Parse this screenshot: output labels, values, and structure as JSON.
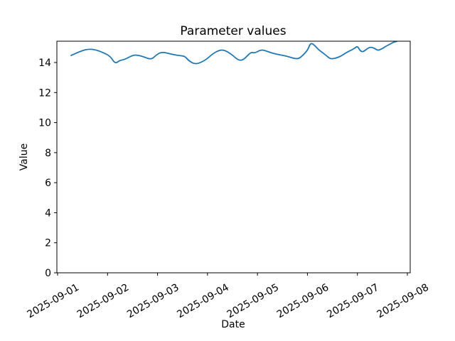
{
  "chart_data": {
    "type": "line",
    "title": "Parameter values",
    "xlabel": "Date",
    "ylabel": "Value",
    "x_tick_labels": [
      "2025-09-01",
      "2025-09-02",
      "2025-09-03",
      "2025-09-04",
      "2025-09-05",
      "2025-09-06",
      "2025-09-07",
      "2025-09-08"
    ],
    "y_ticks": [
      0,
      2,
      4,
      6,
      8,
      10,
      12,
      14
    ],
    "ylim": [
      0,
      15.42
    ],
    "xlim_days": [
      -0.014,
      7.057
    ],
    "grid": false,
    "legend": "none",
    "line_color": "#1f77b4",
    "x_tick_rotation_deg": 30,
    "series": [
      {
        "name": "Parameter values",
        "x_days_since_2025-09-01": [
          0.27,
          0.484,
          0.626,
          0.768,
          0.911,
          1.053,
          1.152,
          1.238,
          1.337,
          1.522,
          1.636,
          1.721,
          1.878,
          1.977,
          2.091,
          2.262,
          2.404,
          2.547,
          2.618,
          2.731,
          2.831,
          2.973,
          3.116,
          3.258,
          3.357,
          3.471,
          3.571,
          3.642,
          3.727,
          3.87,
          3.941,
          4.069,
          4.154,
          4.296,
          4.439,
          4.581,
          4.723,
          4.823,
          4.922,
          5.008,
          5.065,
          5.15,
          5.221,
          5.321,
          5.406,
          5.463,
          5.562,
          5.676,
          5.776,
          5.89,
          5.961,
          6.003,
          6.06,
          6.117,
          6.188,
          6.259,
          6.345,
          6.402,
          6.487,
          6.572,
          6.658,
          6.729,
          6.786
        ],
        "values": [
          14.47,
          14.8,
          14.9,
          14.85,
          14.66,
          14.43,
          13.91,
          14.14,
          14.19,
          14.52,
          14.47,
          14.38,
          14.19,
          14.52,
          14.71,
          14.57,
          14.47,
          14.43,
          14.14,
          13.91,
          13.95,
          14.19,
          14.62,
          14.85,
          14.8,
          14.57,
          14.28,
          14.14,
          14.19,
          14.71,
          14.62,
          14.85,
          14.8,
          14.62,
          14.52,
          14.43,
          14.28,
          14.24,
          14.52,
          14.85,
          15.33,
          15.13,
          14.85,
          14.62,
          14.38,
          14.24,
          14.28,
          14.43,
          14.66,
          14.85,
          14.99,
          15.09,
          14.76,
          14.71,
          14.9,
          15.04,
          14.95,
          14.8,
          14.9,
          15.09,
          15.23,
          15.37,
          15.4
        ]
      }
    ]
  }
}
